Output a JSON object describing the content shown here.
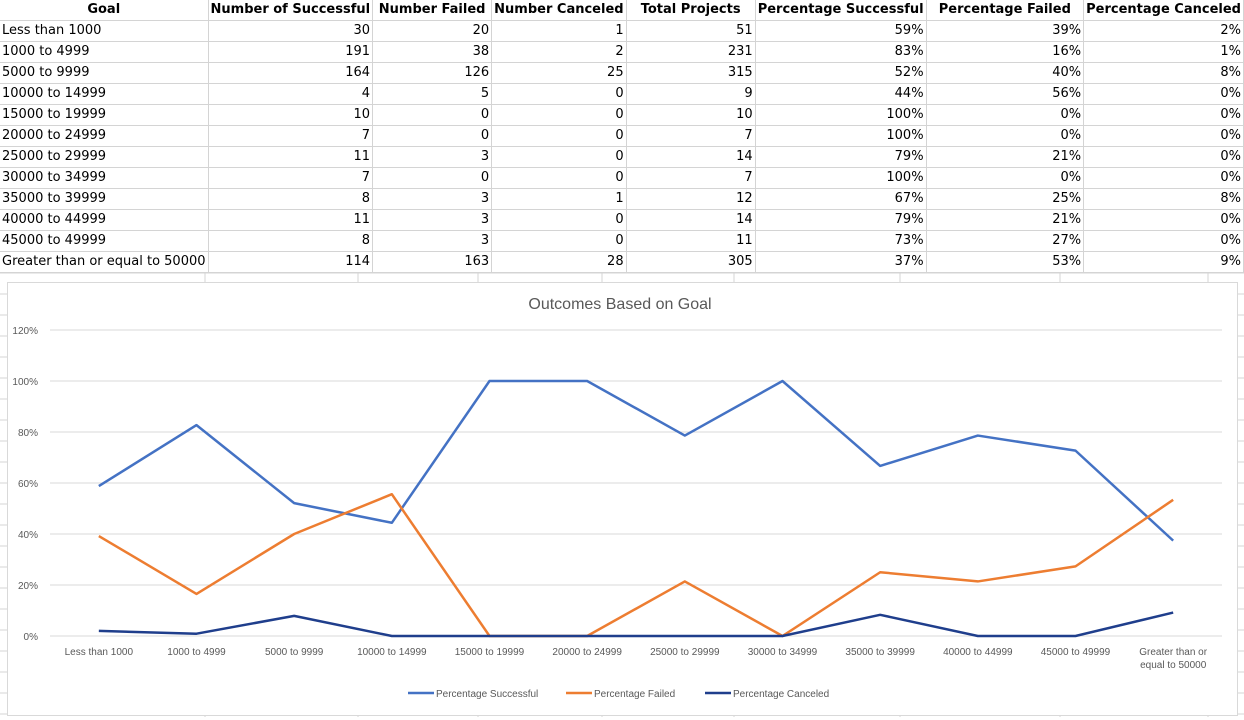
{
  "table": {
    "headers": [
      "Goal",
      "Number of Successful",
      "Number Failed",
      "Number Canceled",
      "Total Projects",
      "Percentage Successful",
      "Percentage Failed",
      "Percentage Canceled"
    ],
    "rows": [
      [
        "Less than 1000",
        "30",
        "20",
        "1",
        "51",
        "59%",
        "39%",
        "2%"
      ],
      [
        "1000 to 4999",
        "191",
        "38",
        "2",
        "231",
        "83%",
        "16%",
        "1%"
      ],
      [
        "5000 to 9999",
        "164",
        "126",
        "25",
        "315",
        "52%",
        "40%",
        "8%"
      ],
      [
        "10000 to 14999",
        "4",
        "5",
        "0",
        "9",
        "44%",
        "56%",
        "0%"
      ],
      [
        "15000 to 19999",
        "10",
        "0",
        "0",
        "10",
        "100%",
        "0%",
        "0%"
      ],
      [
        "20000 to 24999",
        "7",
        "0",
        "0",
        "7",
        "100%",
        "0%",
        "0%"
      ],
      [
        "25000 to 29999",
        "11",
        "3",
        "0",
        "14",
        "79%",
        "21%",
        "0%"
      ],
      [
        "30000 to 34999",
        "7",
        "0",
        "0",
        "7",
        "100%",
        "0%",
        "0%"
      ],
      [
        "35000 to 39999",
        "8",
        "3",
        "1",
        "12",
        "67%",
        "25%",
        "8%"
      ],
      [
        "40000 to 44999",
        "11",
        "3",
        "0",
        "14",
        "79%",
        "21%",
        "0%"
      ],
      [
        "45000 to 49999",
        "8",
        "3",
        "0",
        "11",
        "73%",
        "27%",
        "0%"
      ],
      [
        "Greater than or equal to 50000",
        "114",
        "163",
        "28",
        "305",
        "37%",
        "53%",
        "9%"
      ]
    ]
  },
  "chart_data": {
    "type": "line",
    "title": "Outcomes Based on Goal",
    "categories": [
      [
        "Less than 1000"
      ],
      [
        "1000 to 4999"
      ],
      [
        "5000 to 9999"
      ],
      [
        "10000 to 14999"
      ],
      [
        "15000 to 19999"
      ],
      [
        "20000 to 24999"
      ],
      [
        "25000 to 29999"
      ],
      [
        "30000 to 34999"
      ],
      [
        "35000 to 39999"
      ],
      [
        "40000 to 44999"
      ],
      [
        "45000 to 49999"
      ],
      [
        "Greater than or",
        "equal to 50000"
      ]
    ],
    "y_ticks": [
      "0%",
      "20%",
      "40%",
      "60%",
      "80%",
      "100%",
      "120%"
    ],
    "ylim": [
      0,
      120
    ],
    "grid": true,
    "legend_position": "bottom",
    "series": [
      {
        "name": "Percentage Successful",
        "color": "#4472c4",
        "values": [
          58.8,
          82.7,
          52.1,
          44.4,
          100,
          100,
          78.6,
          100,
          66.7,
          78.6,
          72.7,
          37.4
        ]
      },
      {
        "name": "Percentage Failed",
        "color": "#ed7d31",
        "values": [
          39.2,
          16.5,
          40.0,
          55.6,
          0,
          0,
          21.4,
          0,
          25.0,
          21.4,
          27.3,
          53.4
        ]
      },
      {
        "name": "Percentage Canceled",
        "color": "#1f3e8c",
        "values": [
          2.0,
          0.9,
          7.9,
          0,
          0,
          0,
          0,
          0,
          8.3,
          0,
          0,
          9.2
        ]
      }
    ]
  }
}
